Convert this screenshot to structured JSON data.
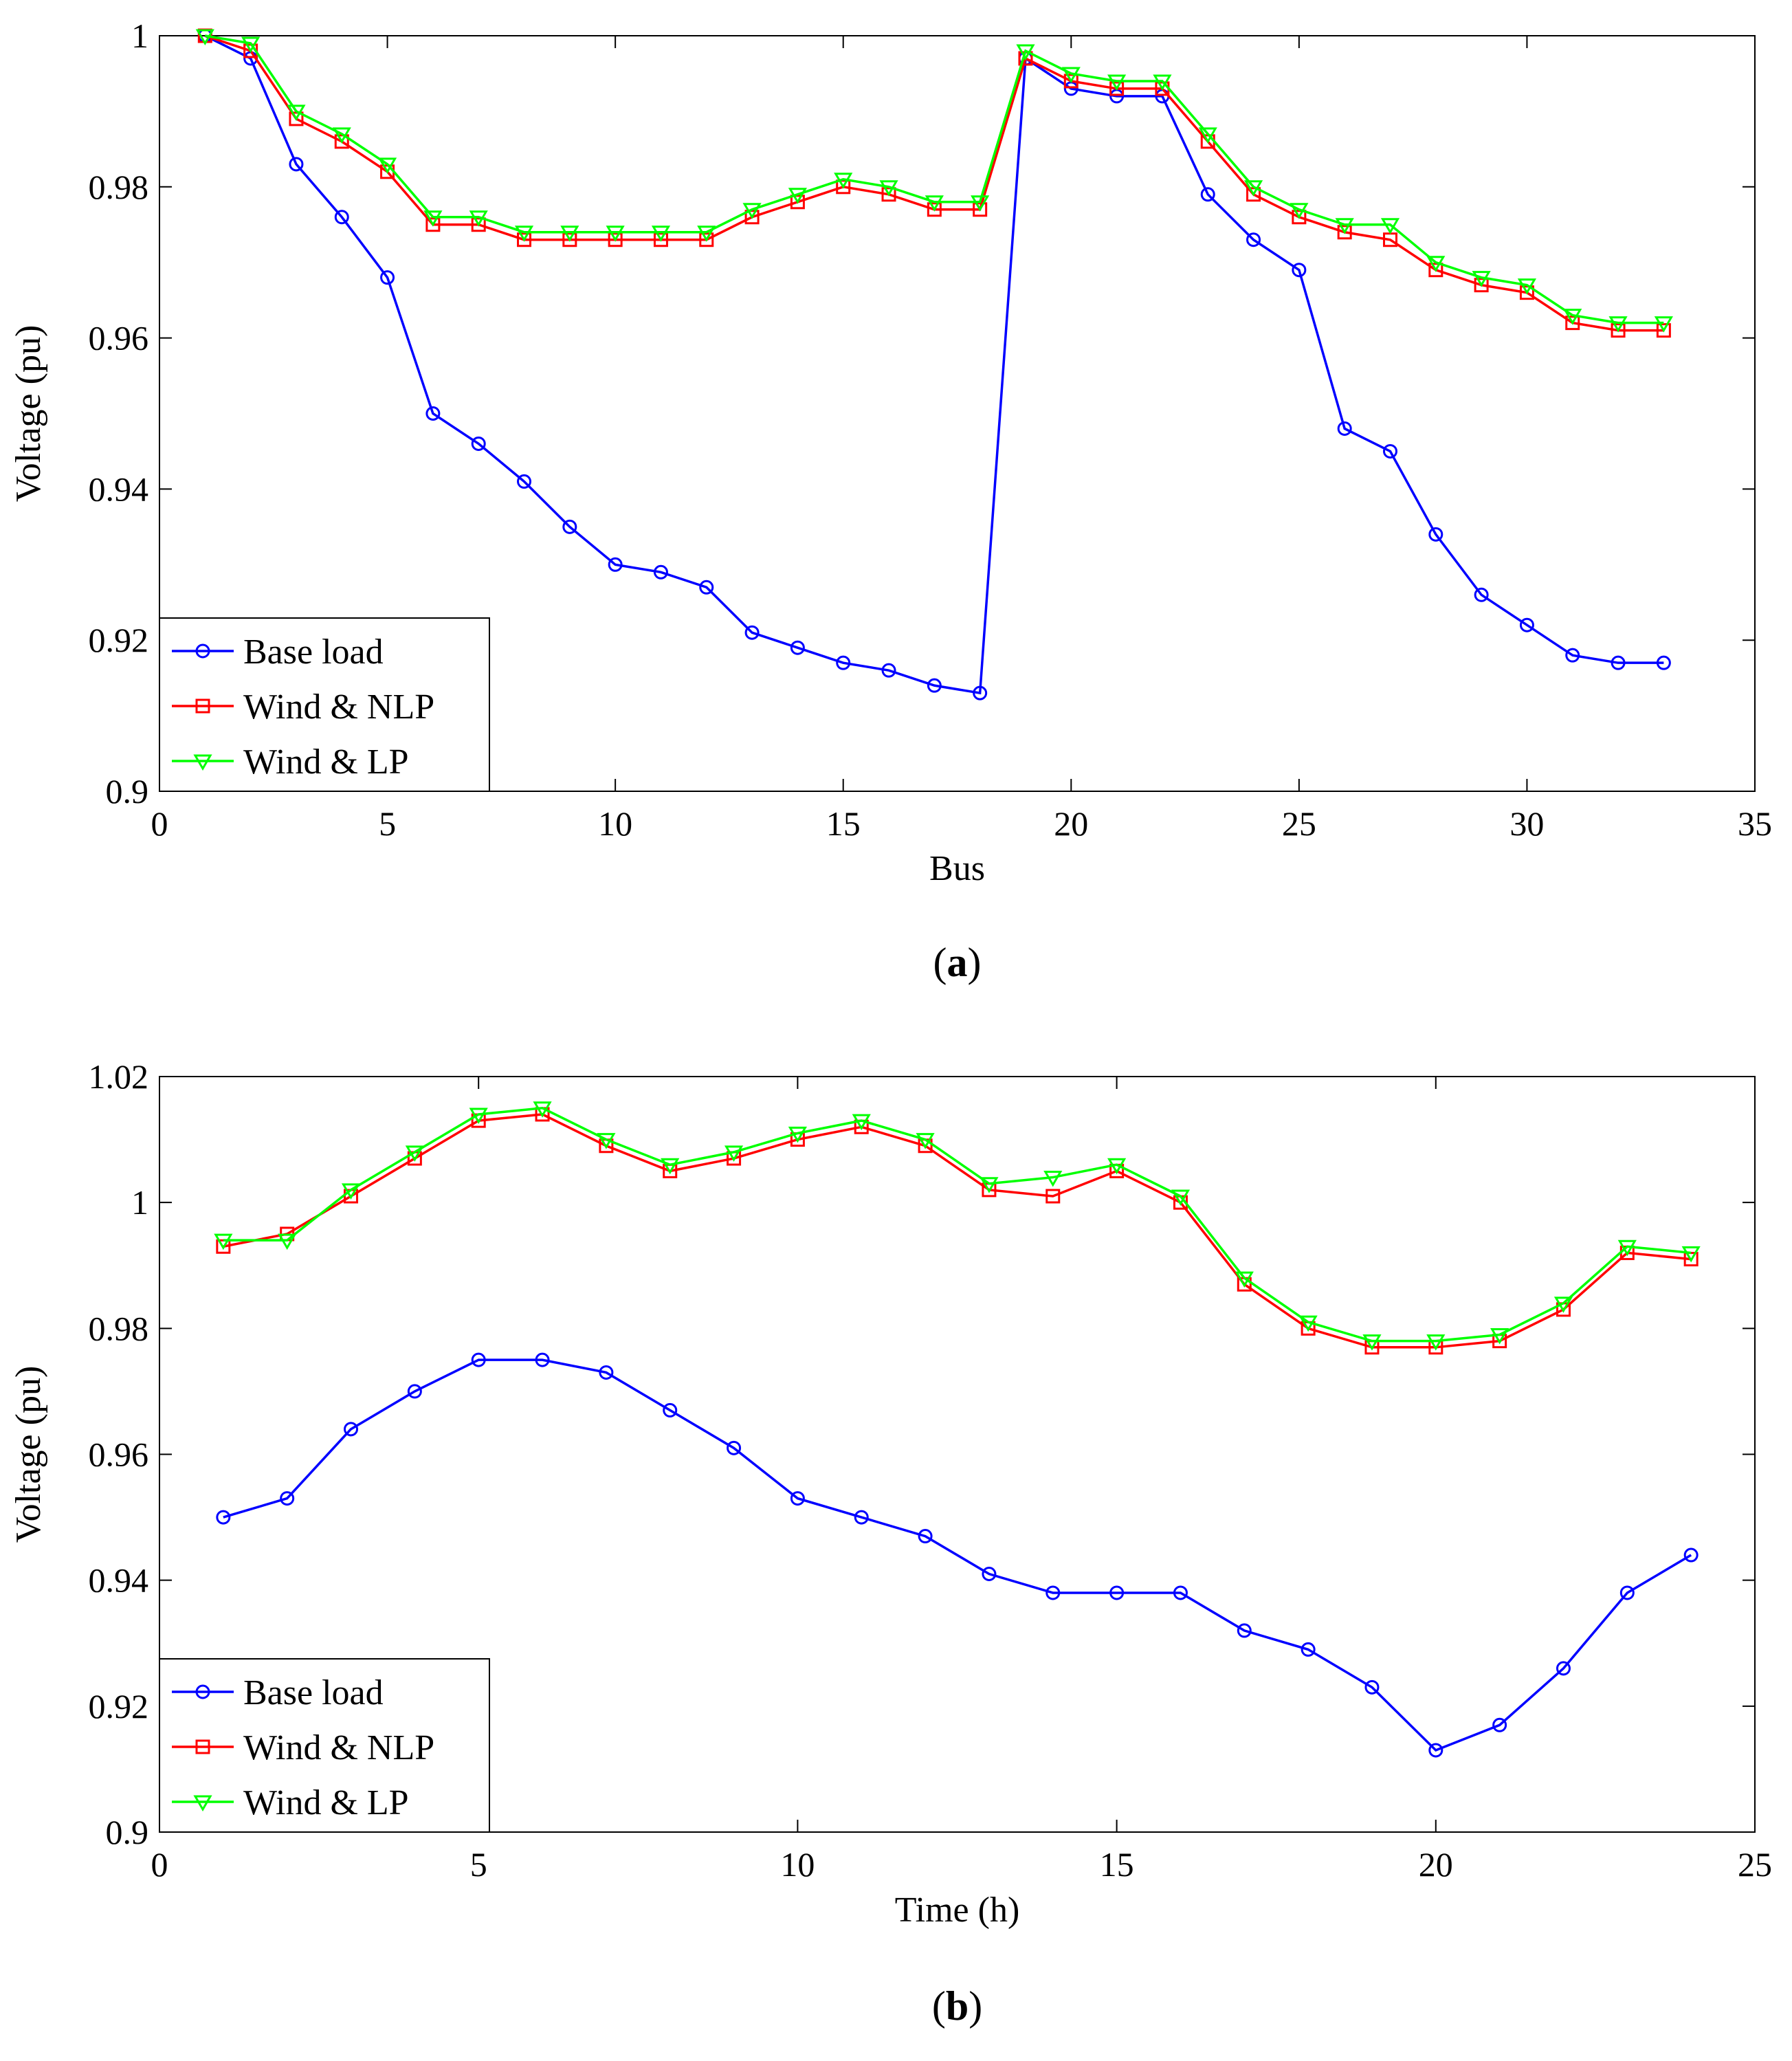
{
  "chart_data": [
    {
      "type": "line",
      "caption_letter": "a",
      "xlabel": "Bus",
      "ylabel": "Voltage (pu)",
      "xlim": [
        0,
        35
      ],
      "ylim": [
        0.9,
        1.0
      ],
      "xticks": [
        0,
        5,
        10,
        15,
        20,
        25,
        30,
        35
      ],
      "yticks": [
        "0.9",
        "0.92",
        "0.94",
        "0.96",
        "0.98",
        "1"
      ],
      "legend_position": "bottom-left",
      "grid": false,
      "x": [
        1,
        2,
        3,
        4,
        5,
        6,
        7,
        8,
        9,
        10,
        11,
        12,
        13,
        14,
        15,
        16,
        17,
        18,
        19,
        20,
        21,
        22,
        23,
        24,
        25,
        26,
        27,
        28,
        29,
        30,
        31,
        32,
        33
      ],
      "series": [
        {
          "name": "Base load",
          "color": "#0000ff",
          "marker": "circle",
          "values": [
            1.0,
            0.997,
            0.983,
            0.976,
            0.968,
            0.95,
            0.946,
            0.941,
            0.935,
            0.93,
            0.929,
            0.927,
            0.921,
            0.919,
            0.917,
            0.916,
            0.914,
            0.913,
            0.997,
            0.993,
            0.992,
            0.992,
            0.979,
            0.973,
            0.969,
            0.948,
            0.945,
            0.934,
            0.926,
            0.922,
            0.918,
            0.917,
            0.917
          ]
        },
        {
          "name": "Wind & NLP",
          "color": "#ff0000",
          "marker": "square",
          "values": [
            1.0,
            0.998,
            0.989,
            0.986,
            0.982,
            0.975,
            0.975,
            0.973,
            0.973,
            0.973,
            0.973,
            0.973,
            0.976,
            0.978,
            0.98,
            0.979,
            0.977,
            0.977,
            0.997,
            0.994,
            0.993,
            0.993,
            0.986,
            0.979,
            0.976,
            0.974,
            0.973,
            0.969,
            0.967,
            0.966,
            0.962,
            0.961,
            0.961
          ]
        },
        {
          "name": "Wind & LP",
          "color": "#00ff00",
          "marker": "triangle-down",
          "values": [
            1.0,
            0.999,
            0.99,
            0.987,
            0.983,
            0.976,
            0.976,
            0.974,
            0.974,
            0.974,
            0.974,
            0.974,
            0.977,
            0.979,
            0.981,
            0.98,
            0.978,
            0.978,
            0.998,
            0.995,
            0.994,
            0.994,
            0.987,
            0.98,
            0.977,
            0.975,
            0.975,
            0.97,
            0.968,
            0.967,
            0.963,
            0.962,
            0.962
          ]
        }
      ]
    },
    {
      "type": "line",
      "caption_letter": "b",
      "xlabel": "Time (h)",
      "ylabel": "Voltage (pu)",
      "xlim": [
        0,
        25
      ],
      "ylim": [
        0.9,
        1.02
      ],
      "xticks": [
        0,
        5,
        10,
        15,
        20,
        25
      ],
      "yticks": [
        "0.9",
        "0.92",
        "0.94",
        "0.96",
        "0.98",
        "1",
        "1.02"
      ],
      "legend_position": "bottom-left",
      "grid": false,
      "x": [
        1,
        2,
        3,
        4,
        5,
        6,
        7,
        8,
        9,
        10,
        11,
        12,
        13,
        14,
        15,
        16,
        17,
        18,
        19,
        20,
        21,
        22,
        23,
        24
      ],
      "series": [
        {
          "name": "Base load",
          "color": "#0000ff",
          "marker": "circle",
          "values": [
            0.95,
            0.953,
            0.964,
            0.97,
            0.975,
            0.975,
            0.973,
            0.967,
            0.961,
            0.953,
            0.95,
            0.947,
            0.941,
            0.938,
            0.938,
            0.938,
            0.932,
            0.929,
            0.923,
            0.913,
            0.917,
            0.926,
            0.938,
            0.944
          ]
        },
        {
          "name": "Wind & NLP",
          "color": "#ff0000",
          "marker": "square",
          "values": [
            0.993,
            0.995,
            1.001,
            1.007,
            1.013,
            1.014,
            1.009,
            1.005,
            1.007,
            1.01,
            1.012,
            1.009,
            1.002,
            1.001,
            1.005,
            1.0,
            0.987,
            0.98,
            0.977,
            0.977,
            0.978,
            0.983,
            0.992,
            0.991
          ]
        },
        {
          "name": "Wind & LP",
          "color": "#00ff00",
          "marker": "triangle-down",
          "values": [
            0.994,
            0.994,
            1.002,
            1.008,
            1.014,
            1.015,
            1.01,
            1.006,
            1.008,
            1.011,
            1.013,
            1.01,
            1.003,
            1.004,
            1.006,
            1.001,
            0.988,
            0.981,
            0.978,
            0.978,
            0.979,
            0.984,
            0.993,
            0.992
          ]
        }
      ]
    }
  ]
}
